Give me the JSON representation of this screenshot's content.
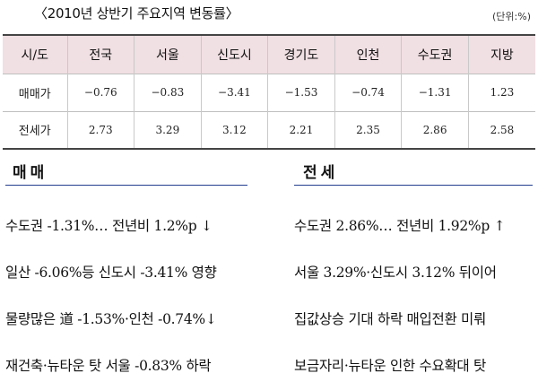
{
  "title": "〈2010년 상반기 주요지역 변동률〉",
  "unit": "(단위:%)",
  "table": {
    "header": [
      "시/도",
      "전국",
      "서울",
      "신도시",
      "경기도",
      "인천",
      "수도권",
      "지방"
    ],
    "rows": [
      {
        "label": "매매가",
        "values": [
          "−0.76",
          "−0.83",
          "−3.41",
          "−1.53",
          "−0.74",
          "−1.31",
          "1.23"
        ]
      },
      {
        "label": "전세가",
        "values": [
          "2.73",
          "3.29",
          "3.12",
          "2.21",
          "2.35",
          "2.86",
          "2.58"
        ]
      }
    ]
  },
  "sale": {
    "heading": "매매",
    "items": [
      "수도권 -1.31%… 전년비 1.2%p ↓",
      "일산 -6.06%등 신도시 -3.41% 영향",
      "물량많은 道 -1.53%·인천 -0.74%↓",
      "재건축·뉴타운 탓 서울 -0.83% 하락"
    ]
  },
  "lease": {
    "heading": "전세",
    "items": [
      "수도권 2.86%… 전년비 1.92%p ↑",
      "서울 3.29%·신도시 3.12% 뒤이어",
      "집값상승 기대 하락 매입전환 미뤄",
      "보금자리·뉴타운 인한 수요확대 탓"
    ]
  }
}
